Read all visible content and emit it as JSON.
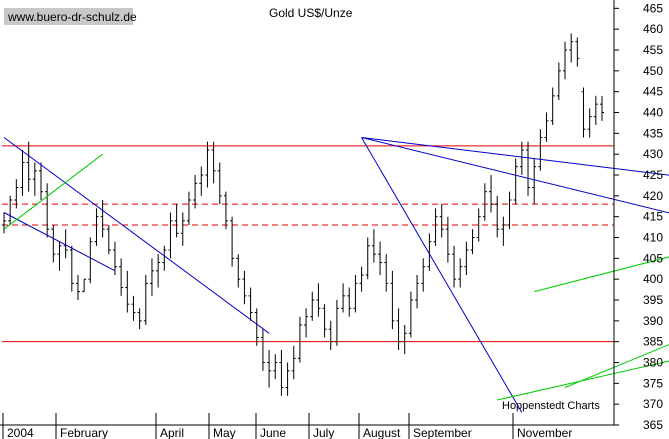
{
  "chart_data": {
    "type": "ohlc",
    "title": "Gold US$/Unze",
    "watermark": "www.buero-dr-schulz.de",
    "source": "Hoppenstedt Charts",
    "x_labels": [
      "2004",
      "February",
      "April",
      "May",
      "June",
      "July",
      "August",
      "September",
      "November"
    ],
    "y_ticks": [
      365,
      370,
      375,
      380,
      385,
      390,
      395,
      400,
      405,
      410,
      415,
      420,
      425,
      430,
      435,
      440,
      445,
      450,
      455,
      460,
      465
    ],
    "ylim": [
      365,
      467
    ],
    "horizontal_lines": [
      {
        "value": 432,
        "style": "solid",
        "color": "#e00000"
      },
      {
        "value": 418,
        "style": "dashed",
        "color": "#e00000"
      },
      {
        "value": 413,
        "style": "dashed",
        "color": "#e00000"
      },
      {
        "value": 385,
        "style": "solid",
        "color": "#e00000"
      }
    ],
    "trend_lines": [
      {
        "color": "#0000c8",
        "from": [
          0,
          434
        ],
        "to": [
          43,
          387
        ]
      },
      {
        "color": "#0000c8",
        "from": [
          0,
          416
        ],
        "to": [
          18,
          402
        ]
      },
      {
        "color": "#0000c8",
        "from": [
          58,
          434
        ],
        "to": [
          84,
          368
        ]
      },
      {
        "color": "#0000c8",
        "from": [
          58,
          434
        ],
        "to": [
          160,
          397
        ]
      },
      {
        "color": "#0000c8",
        "from": [
          58,
          434
        ],
        "to": [
          185,
          411
        ]
      },
      {
        "color": "#00cc00",
        "from": [
          0,
          412
        ],
        "to": [
          16,
          430
        ]
      },
      {
        "color": "#00cc00",
        "from": [
          86,
          397
        ],
        "to": [
          225,
          450
        ]
      },
      {
        "color": "#00cc00",
        "from": [
          80,
          371
        ],
        "to": [
          241,
          425
        ]
      },
      {
        "color": "#00cc00",
        "from": [
          91,
          374
        ],
        "to": [
          132,
          399
        ]
      },
      {
        "color": "#00cc00",
        "from": [
          132,
          383
        ],
        "to": [
          226,
          445
        ]
      },
      {
        "color": "#00cc00",
        "from": [
          212,
          434
        ],
        "to": [
          226,
          443
        ]
      }
    ],
    "bars": [
      [
        413,
        416,
        411,
        414
      ],
      [
        414,
        420,
        413,
        419
      ],
      [
        419,
        424,
        417,
        422
      ],
      [
        422,
        431,
        420,
        428
      ],
      [
        428,
        433,
        421,
        424
      ],
      [
        424,
        428,
        420,
        426
      ],
      [
        426,
        428,
        419,
        421
      ],
      [
        421,
        423,
        410,
        412
      ],
      [
        412,
        413,
        404,
        406
      ],
      [
        406,
        409,
        402,
        408
      ],
      [
        408,
        412,
        405,
        407
      ],
      [
        407,
        408,
        397,
        399
      ],
      [
        399,
        401,
        395,
        397
      ],
      [
        397,
        400,
        397,
        400
      ],
      [
        400,
        410,
        399,
        409
      ],
      [
        409,
        417,
        408,
        415
      ],
      [
        415,
        419,
        410,
        412
      ],
      [
        412,
        413,
        406,
        407
      ],
      [
        407,
        409,
        401,
        403
      ],
      [
        403,
        405,
        396,
        398
      ],
      [
        398,
        402,
        392,
        394
      ],
      [
        394,
        396,
        390,
        392
      ],
      [
        392,
        393,
        388,
        390
      ],
      [
        390,
        401,
        389,
        399
      ],
      [
        399,
        405,
        396,
        402
      ],
      [
        402,
        406,
        398,
        404
      ],
      [
        404,
        408,
        402,
        407
      ],
      [
        407,
        416,
        405,
        414
      ],
      [
        414,
        418,
        410,
        411
      ],
      [
        411,
        416,
        408,
        414
      ],
      [
        414,
        421,
        413,
        419
      ],
      [
        419,
        425,
        417,
        423
      ],
      [
        423,
        427,
        420,
        425
      ],
      [
        425,
        433,
        422,
        431
      ],
      [
        431,
        433,
        423,
        426
      ],
      [
        426,
        428,
        418,
        420
      ],
      [
        420,
        421,
        412,
        414
      ],
      [
        414,
        415,
        403,
        405
      ],
      [
        405,
        406,
        398,
        400
      ],
      [
        400,
        402,
        394,
        396
      ],
      [
        396,
        398,
        390,
        392
      ],
      [
        392,
        393,
        384,
        386
      ],
      [
        386,
        388,
        378,
        380
      ],
      [
        380,
        383,
        374,
        378
      ],
      [
        378,
        382,
        376,
        380
      ],
      [
        380,
        383,
        372,
        374
      ],
      [
        374,
        380,
        372,
        378
      ],
      [
        378,
        384,
        376,
        381
      ],
      [
        381,
        391,
        380,
        389
      ],
      [
        389,
        393,
        386,
        391
      ],
      [
        391,
        397,
        390,
        395
      ],
      [
        395,
        399,
        391,
        393
      ],
      [
        393,
        394,
        386,
        388
      ],
      [
        388,
        390,
        383,
        385
      ],
      [
        385,
        395,
        384,
        393
      ],
      [
        393,
        399,
        392,
        396
      ],
      [
        396,
        398,
        391,
        393
      ],
      [
        393,
        401,
        392,
        399
      ],
      [
        399,
        403,
        397,
        401
      ],
      [
        401,
        410,
        400,
        408
      ],
      [
        408,
        412,
        404,
        406
      ],
      [
        406,
        409,
        401,
        404
      ],
      [
        404,
        406,
        397,
        399
      ],
      [
        399,
        402,
        388,
        390
      ],
      [
        390,
        393,
        383,
        385
      ],
      [
        385,
        389,
        382,
        387
      ],
      [
        387,
        397,
        386,
        395
      ],
      [
        395,
        401,
        393,
        399
      ],
      [
        399,
        405,
        397,
        403
      ],
      [
        403,
        411,
        402,
        409
      ],
      [
        409,
        417,
        408,
        415
      ],
      [
        415,
        418,
        410,
        412
      ],
      [
        412,
        415,
        404,
        406
      ],
      [
        406,
        408,
        398,
        400
      ],
      [
        400,
        405,
        398,
        403
      ],
      [
        403,
        409,
        401,
        407
      ],
      [
        407,
        412,
        406,
        410
      ],
      [
        410,
        417,
        409,
        415
      ],
      [
        415,
        423,
        414,
        421
      ],
      [
        421,
        425,
        416,
        418
      ],
      [
        418,
        420,
        410,
        412
      ],
      [
        412,
        415,
        408,
        413
      ],
      [
        413,
        421,
        412,
        419
      ],
      [
        419,
        429,
        418,
        427
      ],
      [
        427,
        433,
        425,
        431
      ],
      [
        431,
        433,
        420,
        422
      ],
      [
        422,
        429,
        418,
        427
      ],
      [
        427,
        436,
        426,
        434
      ],
      [
        434,
        440,
        433,
        438
      ],
      [
        438,
        446,
        437,
        444
      ],
      [
        444,
        452,
        443,
        450
      ],
      [
        450,
        457,
        448,
        455
      ],
      [
        455,
        459,
        452,
        457
      ],
      [
        457,
        458,
        451,
        453
      ],
      [
        445,
        446,
        434,
        436
      ],
      [
        436,
        441,
        434,
        439
      ],
      [
        439,
        444,
        437,
        442
      ],
      [
        442,
        444,
        438,
        440
      ]
    ]
  }
}
